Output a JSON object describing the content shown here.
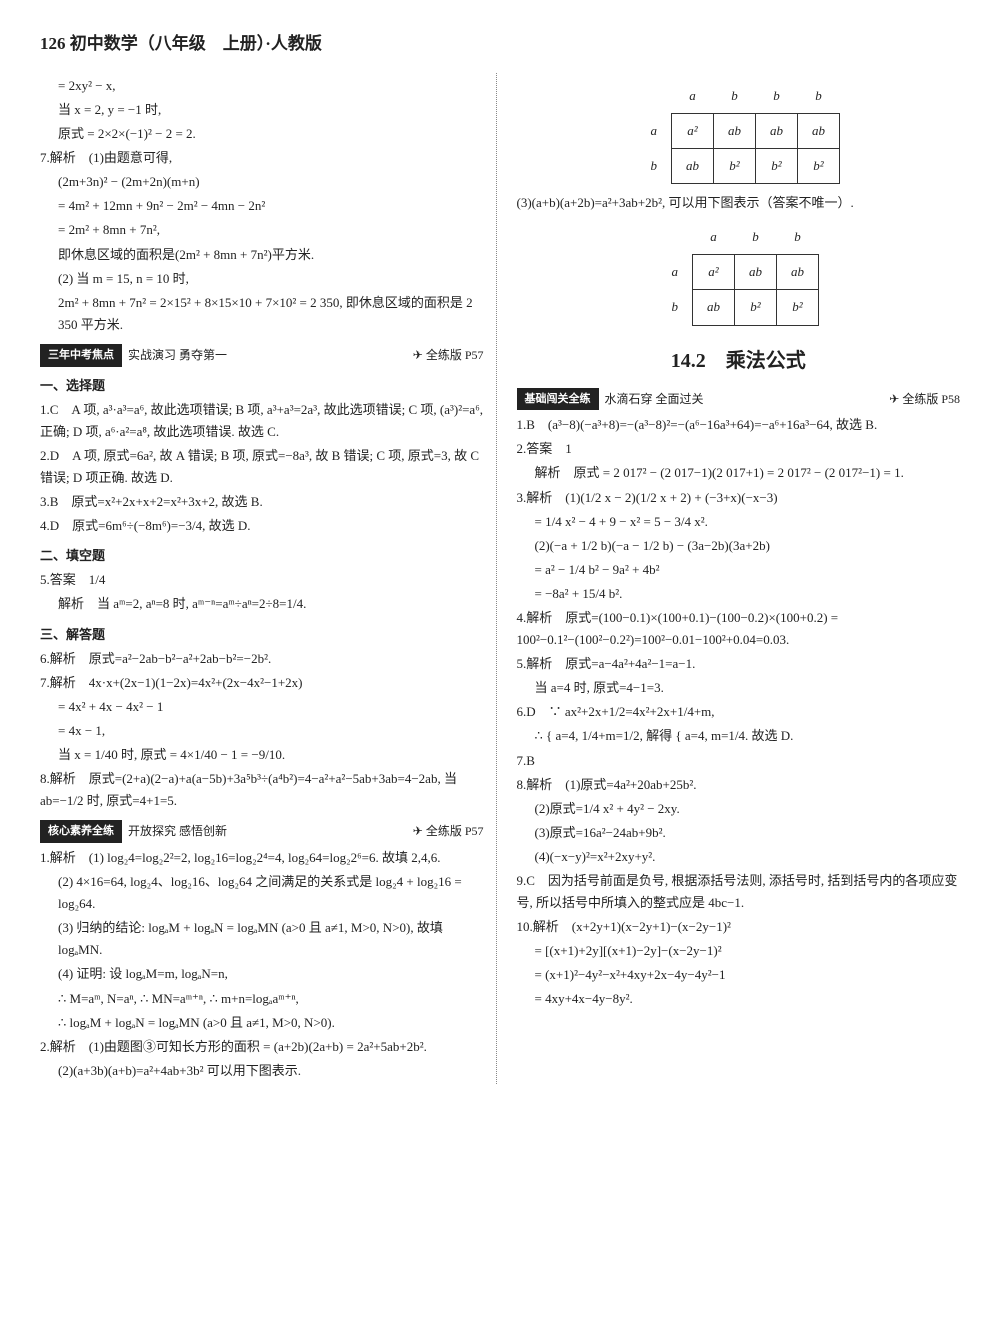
{
  "header": {
    "page_number": "126",
    "title": "初中数学（八年级　上册）·人教版"
  },
  "left": {
    "pre": [
      "= 2xy² − x,",
      "当 x = 2, y = −1 时,",
      "原式 = 2×2×(−1)² − 2 = 2.",
      "7.解析　(1)由题意可得,",
      "(2m+3n)² − (2m+2n)(m+n)",
      "= 4m² + 12mn + 9n² − 2m² − 4mn − 2n²",
      "= 2m² + 8mn + 7n²,",
      "即休息区域的面积是(2m² + 8mn + 7n²)平方米.",
      "(2) 当 m = 15, n = 10 时,",
      "2m² + 8mn + 7n² = 2×15² + 8×15×10 + 7×10² = 2 350, 即休息区域的面积是 2 350 平方米."
    ],
    "bar1": {
      "dark": "三年中考焦点",
      "sub": "实战演习 勇夺第一",
      "ref": "全练版 P57"
    },
    "sec1_title": "一、选择题",
    "sec1": [
      "1.C　A 项, a³·a³=a⁶, 故此选项错误; B 项, a³+a³=2a³, 故此选项错误; C 项, (a³)²=a⁶, 正确; D 项, a⁶·a²=a⁸, 故此选项错误. 故选 C.",
      "2.D　A 项, 原式=6a², 故 A 错误; B 项, 原式=−8a³, 故 B 错误; C 项, 原式=3, 故 C 错误; D 项正确. 故选 D.",
      "3.B　原式=x²+2x+x+2=x²+3x+2, 故选 B.",
      "4.D　原式=6m⁶÷(−8m⁶)=−3/4, 故选 D."
    ],
    "sec2_title": "二、填空题",
    "sec2": [
      "5.答案　1/4",
      "解析　当 aᵐ=2, aⁿ=8 时, aᵐ⁻ⁿ=aᵐ÷aⁿ=2÷8=1/4."
    ],
    "sec3_title": "三、解答题",
    "sec3": [
      "6.解析　原式=a²−2ab−b²−a²+2ab−b²=−2b².",
      "7.解析　4x·x+(2x−1)(1−2x)=4x²+(2x−4x²−1+2x)",
      "= 4x² + 4x − 4x² − 1",
      "= 4x − 1,",
      "当 x = 1/40 时, 原式 = 4×1/40 − 1 = −9/10.",
      "8.解析　原式=(2+a)(2−a)+a(a−5b)+3a⁵b³÷(a⁴b²)=4−a²+a²−5ab+3ab=4−2ab, 当 ab=−1/2 时, 原式=4+1=5."
    ],
    "bar2": {
      "dark": "核心素养全练",
      "sub": "开放探究 感悟创新",
      "ref": "全练版 P57"
    },
    "sec4": [
      "1.解析　(1) log₂4=log₂2²=2, log₂16=log₂2⁴=4, log₂64=log₂2⁶=6. 故填 2,4,6.",
      "(2) 4×16=64, log₂4、log₂16、log₂64 之间满足的关系式是 log₂4 + log₂16 = log₂64.",
      "(3) 归纳的结论: logₐM + logₐN = logₐMN (a>0 且 a≠1, M>0, N>0), 故填 logₐMN.",
      "(4) 证明: 设 logₐM=m, logₐN=n,",
      "∴ M=aᵐ, N=aⁿ, ∴ MN=aᵐ⁺ⁿ, ∴ m+n=logₐaᵐ⁺ⁿ,",
      "∴ logₐM + logₐN = logₐMN (a>0 且 a≠1, M>0, N>0).",
      "2.解析　(1)由题图③可知长方形的面积 = (a+2b)(2a+b) = 2a²+5ab+2b².",
      "(2)(a+3b)(a+b)=a²+4ab+3b² 可以用下图表示."
    ]
  },
  "right": {
    "table1": {
      "cols": [
        "a",
        "b",
        "b",
        "b"
      ],
      "rows": [
        {
          "h": "a",
          "c": [
            "a²",
            "ab",
            "ab",
            "ab"
          ]
        },
        {
          "h": "b",
          "c": [
            "ab",
            "b²",
            "b²",
            "b²"
          ]
        }
      ]
    },
    "t1_caption": "(3)(a+b)(a+2b)=a²+3ab+2b², 可以用下图表示（答案不唯一）.",
    "table2": {
      "cols": [
        "a",
        "b",
        "b"
      ],
      "rows": [
        {
          "h": "a",
          "c": [
            "a²",
            "ab",
            "ab"
          ]
        },
        {
          "h": "b",
          "c": [
            "ab",
            "b²",
            "b²"
          ]
        }
      ]
    },
    "chapter": "14.2　乘法公式",
    "bar3": {
      "dark": "基础闯关全练",
      "sub": "水滴石穿 全面过关",
      "ref": "全练版 P58"
    },
    "sec5": [
      "1.B　(a³−8)(−a³+8)=−(a³−8)²=−(a⁶−16a³+64)=−a⁶+16a³−64, 故选 B.",
      "2.答案　1",
      "解析　原式 = 2 017² − (2 017−1)(2 017+1) = 2 017² − (2 017²−1) = 1.",
      "3.解析　(1)(1/2 x − 2)(1/2 x + 2) + (−3+x)(−x−3)",
      "= 1/4 x² − 4 + 9 − x² = 5 − 3/4 x².",
      "(2)(−a + 1/2 b)(−a − 1/2 b) − (3a−2b)(3a+2b)",
      "= a² − 1/4 b² − 9a² + 4b²",
      "= −8a² + 15/4 b².",
      "4.解析　原式=(100−0.1)×(100+0.1)−(100−0.2)×(100+0.2) = 100²−0.1²−(100²−0.2²)=100²−0.01−100²+0.04=0.03.",
      "5.解析　原式=a−4a²+4a²−1=a−1.",
      "当 a=4 时, 原式=4−1=3.",
      "6.D　∵ ax²+2x+1/2=4x²+2x+1/4+m,",
      "∴ { a=4, 1/4+m=1/2, 解得 { a=4, m=1/4. 故选 D.",
      "7.B",
      "8.解析　(1)原式=4a²+20ab+25b².",
      "(2)原式=1/4 x² + 4y² − 2xy.",
      "(3)原式=16a²−24ab+9b².",
      "(4)(−x−y)²=x²+2xy+y².",
      "9.C　因为括号前面是负号, 根据添括号法则, 添括号时, 括到括号内的各项应变号, 所以括号中所填入的整式应是 4bc−1.",
      "10.解析　(x+2y+1)(x−2y+1)−(x−2y−1)²",
      "= [(x+1)+2y][(x+1)−2y]−(x−2y−1)²",
      "= (x+1)²−4y²−x²+4xy+2x−4y−4y²−1",
      "= 4xy+4x−4y−8y²."
    ]
  }
}
